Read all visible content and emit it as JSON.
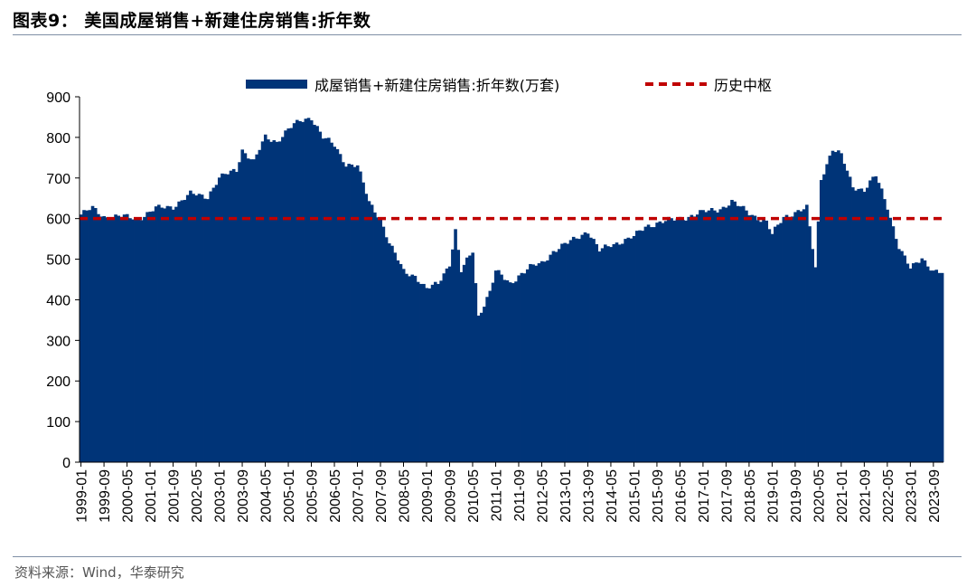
{
  "header": {
    "title": "图表9： 美国成屋销售+新建住房销售:折年数"
  },
  "footer": {
    "source": "资料来源：Wind，华泰研究"
  },
  "colors": {
    "bar": "#003478",
    "reference_line": "#c00000",
    "rule": "#7f8fa6"
  },
  "chart_data": {
    "type": "area",
    "x_start": "1999-01",
    "x_end": "2023-12",
    "xtick_labels": [
      "1999-01",
      "1999-09",
      "2000-05",
      "2001-01",
      "2001-09",
      "2002-05",
      "2003-01",
      "2003-09",
      "2004-05",
      "2005-01",
      "2005-09",
      "2006-05",
      "2007-01",
      "2007-09",
      "2008-05",
      "2009-01",
      "2009-09",
      "2010-05",
      "2011-01",
      "2011-09",
      "2012-05",
      "2013-01",
      "2013-09",
      "2014-05",
      "2015-01",
      "2015-09",
      "2016-05",
      "2017-01",
      "2017-09",
      "2018-05",
      "2019-01",
      "2019-09",
      "2020-05",
      "2021-01",
      "2021-09",
      "2022-05",
      "2023-01",
      "2023-09"
    ],
    "ylim": [
      0,
      900
    ],
    "yticks": [
      0,
      100,
      200,
      300,
      400,
      500,
      600,
      700,
      800,
      900
    ],
    "series": [
      {
        "name": "成屋销售+新建住房销售:折年数(万套)",
        "style": "bar",
        "anchors": [
          [
            "1999-01",
            610
          ],
          [
            "1999-05",
            625
          ],
          [
            "1999-09",
            605
          ],
          [
            "2000-03",
            605
          ],
          [
            "2000-09",
            600
          ],
          [
            "2001-03",
            625
          ],
          [
            "2001-09",
            630
          ],
          [
            "2002-03",
            660
          ],
          [
            "2002-09",
            655
          ],
          [
            "2003-01",
            700
          ],
          [
            "2003-07",
            720
          ],
          [
            "2003-09",
            770
          ],
          [
            "2004-01",
            740
          ],
          [
            "2004-05",
            800
          ],
          [
            "2004-09",
            790
          ],
          [
            "2005-01",
            820
          ],
          [
            "2005-05",
            840
          ],
          [
            "2005-09",
            850
          ],
          [
            "2006-01",
            800
          ],
          [
            "2006-05",
            780
          ],
          [
            "2006-09",
            735
          ],
          [
            "2007-01",
            730
          ],
          [
            "2007-05",
            640
          ],
          [
            "2007-09",
            600
          ],
          [
            "2007-12",
            540
          ],
          [
            "2008-05",
            470
          ],
          [
            "2008-09",
            460
          ],
          [
            "2009-01",
            425
          ],
          [
            "2009-05",
            440
          ],
          [
            "2009-09",
            490
          ],
          [
            "2009-11",
            570
          ],
          [
            "2010-01",
            470
          ],
          [
            "2010-05",
            520
          ],
          [
            "2010-07",
            360
          ],
          [
            "2010-11",
            420
          ],
          [
            "2011-01",
            470
          ],
          [
            "2011-06",
            440
          ],
          [
            "2011-09",
            460
          ],
          [
            "2012-01",
            480
          ],
          [
            "2012-05",
            490
          ],
          [
            "2012-09",
            520
          ],
          [
            "2013-01",
            535
          ],
          [
            "2013-09",
            570
          ],
          [
            "2014-01",
            520
          ],
          [
            "2014-05",
            535
          ],
          [
            "2015-01",
            555
          ],
          [
            "2015-05",
            580
          ],
          [
            "2015-09",
            590
          ],
          [
            "2016-01",
            595
          ],
          [
            "2016-05",
            600
          ],
          [
            "2017-01",
            615
          ],
          [
            "2017-07",
            625
          ],
          [
            "2017-11",
            640
          ],
          [
            "2018-05",
            615
          ],
          [
            "2018-11",
            590
          ],
          [
            "2019-01",
            560
          ],
          [
            "2019-05",
            605
          ],
          [
            "2019-09",
            615
          ],
          [
            "2020-01",
            625
          ],
          [
            "2020-04",
            480
          ],
          [
            "2020-06",
            700
          ],
          [
            "2020-10",
            770
          ],
          [
            "2021-01",
            755
          ],
          [
            "2021-05",
            680
          ],
          [
            "2021-09",
            670
          ],
          [
            "2022-01",
            705
          ],
          [
            "2022-05",
            630
          ],
          [
            "2022-09",
            530
          ],
          [
            "2023-01",
            475
          ],
          [
            "2023-05",
            505
          ],
          [
            "2023-09",
            470
          ],
          [
            "2023-12",
            465
          ]
        ]
      },
      {
        "name": "历史中枢",
        "style": "dashed-line",
        "value": 600
      }
    ],
    "legend_position": "top"
  }
}
